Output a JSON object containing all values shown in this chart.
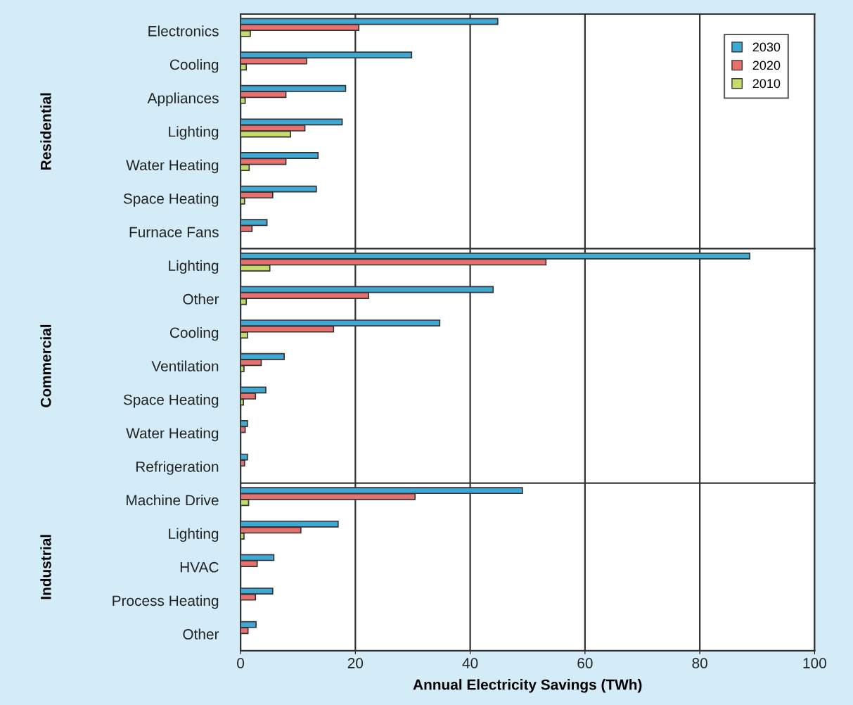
{
  "chart_data": [
    {
      "type": "bar",
      "orientation": "horizontal",
      "ylabel": "Residential",
      "categories": [
        "Electronics",
        "Cooling",
        "Appliances",
        "Lighting",
        "Water Heating",
        "Space Heating",
        "Furnace Fans"
      ],
      "series": [
        {
          "name": "2030",
          "color": "#3fa9d6",
          "values": [
            44.8,
            29.8,
            18.3,
            17.7,
            13.5,
            13.2,
            4.6
          ]
        },
        {
          "name": "2020",
          "color": "#e8706f",
          "values": [
            20.6,
            11.5,
            7.9,
            11.2,
            7.9,
            5.6,
            2.0
          ]
        },
        {
          "name": "2010",
          "color": "#c5dc6a",
          "values": [
            1.7,
            1.0,
            0.8,
            8.7,
            1.5,
            0.7,
            null
          ]
        }
      ],
      "xlim": [
        0,
        100
      ],
      "xticks": [
        0,
        20,
        40,
        60,
        80,
        100
      ],
      "grid": "x",
      "legend": "top right",
      "tick_labels": "y"
    },
    {
      "type": "bar",
      "orientation": "horizontal",
      "ylabel": "Commercial",
      "categories": [
        "Lighting",
        "Other",
        "Cooling",
        "Ventilation",
        "Space Heating",
        "Water Heating",
        "Refrigeration"
      ],
      "series": [
        {
          "color": "#3fa9d6",
          "values": [
            88.7,
            44.0,
            34.7,
            7.6,
            4.4,
            1.2,
            1.2
          ]
        },
        {
          "color": "#e8706f",
          "values": [
            53.2,
            22.3,
            16.2,
            3.6,
            2.6,
            0.8,
            0.7
          ]
        },
        {
          "color": "#c5dc6a",
          "values": [
            5.1,
            1.0,
            1.2,
            0.6,
            0.5,
            null,
            null
          ]
        }
      ],
      "xlim": [
        0,
        100
      ],
      "xticks": [
        0,
        20,
        40,
        60,
        80,
        100
      ],
      "grid": "x",
      "tick_labels": "y"
    },
    {
      "type": "bar",
      "orientation": "horizontal",
      "ylabel": "Industrial",
      "xlabel": "Annual Electricity Savings (TWh)",
      "categories": [
        "Machine Drive",
        "Lighting",
        "HVAC",
        "Process Heating",
        "Other"
      ],
      "series": [
        {
          "color": "#3fa9d6",
          "values": [
            49.1,
            17.0,
            5.8,
            5.6,
            2.7
          ]
        },
        {
          "color": "#e8706f",
          "values": [
            30.4,
            10.5,
            2.9,
            2.6,
            1.3
          ]
        },
        {
          "color": "#c5dc6a",
          "values": [
            1.4,
            0.6,
            null,
            null,
            null
          ]
        }
      ],
      "xlim": [
        0,
        100
      ],
      "xticks": [
        0,
        20,
        40,
        60,
        80,
        100
      ],
      "grid": "x"
    }
  ]
}
